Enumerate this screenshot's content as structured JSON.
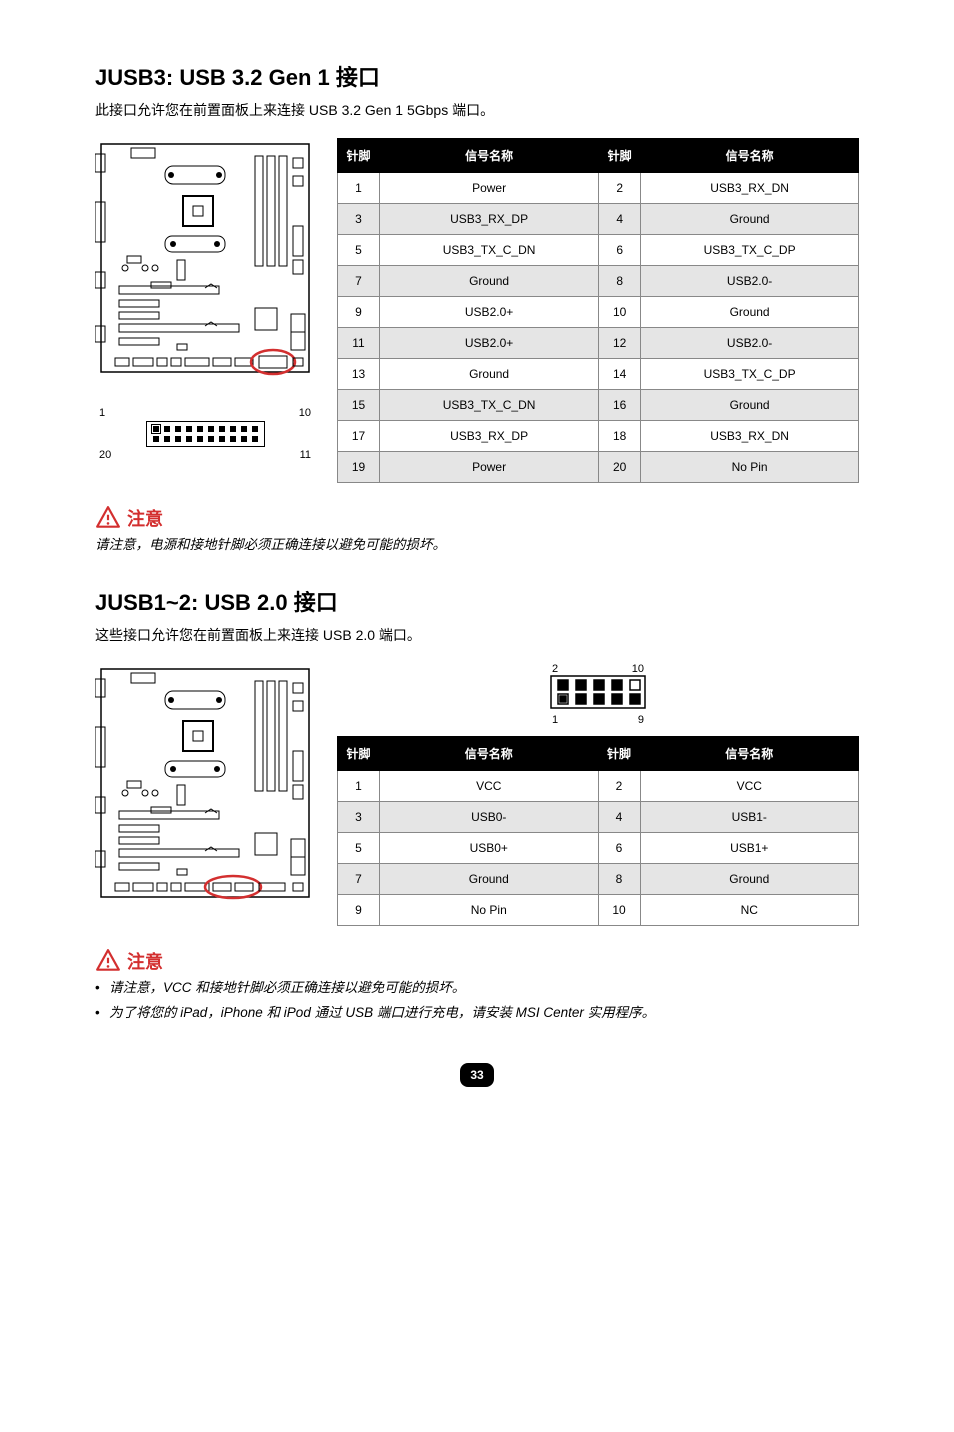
{
  "section1": {
    "heading": "JUSB3: USB 3.2 Gen 1 接口",
    "subtitle": "此接口允许您在前置面板上来连接 USB 3.2 Gen 1 5Gbps 端口。",
    "pinHeader": {
      "tl": "1",
      "tr": "10",
      "bl": "20",
      "br": "11"
    },
    "tableHead": {
      "pin": "针脚",
      "sig": "信号名称"
    },
    "rows": [
      {
        "a": "1",
        "b": "Power",
        "c": "2",
        "d": "USB3_RX_DN"
      },
      {
        "a": "3",
        "b": "USB3_RX_DP",
        "c": "4",
        "d": "Ground"
      },
      {
        "a": "5",
        "b": "USB3_TX_C_DN",
        "c": "6",
        "d": "USB3_TX_C_DP"
      },
      {
        "a": "7",
        "b": "Ground",
        "c": "8",
        "d": "USB2.0-"
      },
      {
        "a": "9",
        "b": "USB2.0+",
        "c": "10",
        "d": "Ground"
      },
      {
        "a": "11",
        "b": "USB2.0+",
        "c": "12",
        "d": "USB2.0-"
      },
      {
        "a": "13",
        "b": "Ground",
        "c": "14",
        "d": "USB3_TX_C_DP"
      },
      {
        "a": "15",
        "b": "USB3_TX_C_DN",
        "c": "16",
        "d": "Ground"
      },
      {
        "a": "17",
        "b": "USB3_RX_DP",
        "c": "18",
        "d": "USB3_RX_DN"
      },
      {
        "a": "19",
        "b": "Power",
        "c": "20",
        "d": "No Pin"
      }
    ],
    "noticeTitle": "注意",
    "noticeText": "请注意，电源和接地针脚必须正确连接以避免可能的损坏。"
  },
  "section2": {
    "heading": "JUSB1~2: USB 2.0 接口",
    "subtitle": "这些接口允许您在前置面板上来连接 USB 2.0 端口。",
    "pinHeader": {
      "tl": "2",
      "tr": "10",
      "bl": "1",
      "br": "9"
    },
    "tableHead": {
      "pin": "针脚",
      "sig": "信号名称"
    },
    "rows": [
      {
        "a": "1",
        "b": "VCC",
        "c": "2",
        "d": "VCC"
      },
      {
        "a": "3",
        "b": "USB0-",
        "c": "4",
        "d": "USB1-"
      },
      {
        "a": "5",
        "b": "USB0+",
        "c": "6",
        "d": "USB1+"
      },
      {
        "a": "7",
        "b": "Ground",
        "c": "8",
        "d": "Ground"
      },
      {
        "a": "9",
        "b": "No Pin",
        "c": "10",
        "d": "NC"
      }
    ],
    "noticeTitle": "注意",
    "noticeItems": [
      "请注意，VCC 和接地针脚必须正确连接以避免可能的损坏。",
      "为了将您的 iPad，iPhone 和 iPod 通过 USB 端口进行充电，请安装 MSI Center 实用程序。"
    ]
  },
  "pageNumber": "33"
}
